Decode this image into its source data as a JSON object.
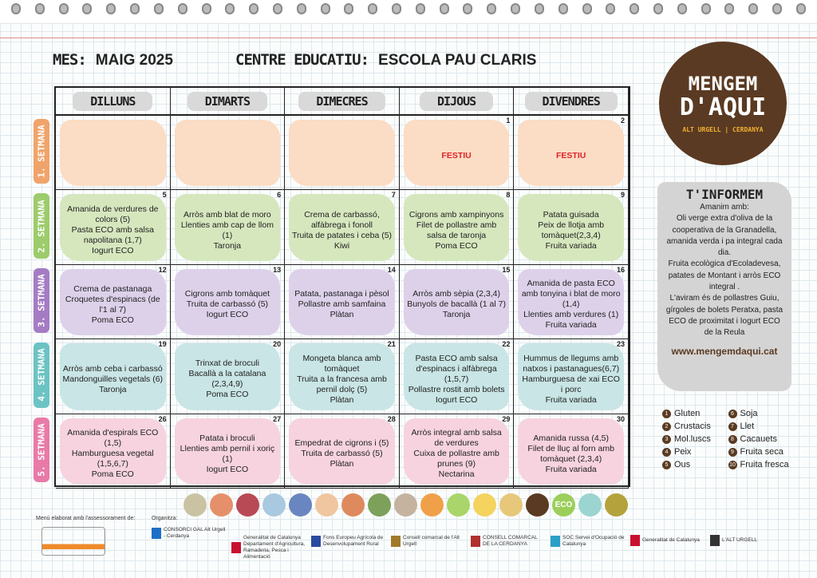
{
  "header": {
    "month_label": "MES:",
    "month": "MAIG 2025",
    "school_label": "CENTRE EDUCATIU:",
    "school": "ESCOLA PAU CLARIS"
  },
  "days": [
    "DILLUNS",
    "DIMARTS",
    "DIMECRES",
    "DIJOUS",
    "DIVENDRES"
  ],
  "weeks": [
    {
      "label": "1. SETMANA",
      "color": "#f0a46b",
      "bg": "#fbdcc4",
      "cells": [
        {
          "num": "",
          "lines": []
        },
        {
          "num": "",
          "lines": []
        },
        {
          "num": "",
          "lines": []
        },
        {
          "num": "1",
          "festiu": "FESTIU",
          "lines": []
        },
        {
          "num": "2",
          "festiu": "FESTIU",
          "lines": []
        }
      ]
    },
    {
      "label": "2. SETMANA",
      "color": "#9ccc6b",
      "bg": "#d6e7be",
      "cells": [
        {
          "num": "5",
          "lines": [
            "Amanida de verdures de colors (5)",
            "Pasta ECO amb salsa napolitana (1,7)",
            "Iogurt ECO"
          ]
        },
        {
          "num": "6",
          "lines": [
            "Arròs amb blat de moro",
            "Llenties amb cap de llom (1)",
            "Taronja"
          ]
        },
        {
          "num": "7",
          "lines": [
            "Crema de carbassó, alfàbrega i fonoll",
            "Truita de patates i ceba (5)",
            "Kiwi"
          ]
        },
        {
          "num": "8",
          "lines": [
            "Cigrons amb xampinyons",
            "Filet de pollastre amb salsa de taronja",
            "Poma ECO"
          ]
        },
        {
          "num": "9",
          "lines": [
            "Patata guisada",
            "Peix de llotja amb tomàquet(2,3,4)",
            "Fruita variada"
          ]
        }
      ]
    },
    {
      "label": "3. SETMANA",
      "color": "#a57cc4",
      "bg": "#ddd1ea",
      "cells": [
        {
          "num": "12",
          "lines": [
            "Crema de pastanaga",
            "Croquetes d'espinacs (de l'1 al 7)",
            "Poma ECO"
          ]
        },
        {
          "num": "13",
          "lines": [
            "Cigrons amb tomàquet",
            "Truita de carbassó (5)",
            "Iogurt ECO"
          ]
        },
        {
          "num": "14",
          "lines": [
            "Patata, pastanaga i pèsol",
            "Pollastre amb samfaina",
            "Plàtan"
          ]
        },
        {
          "num": "15",
          "lines": [
            "Arròs amb sèpia (2,3,4)",
            "Bunyols de bacallà (1 al 7)",
            "Taronja"
          ]
        },
        {
          "num": "16",
          "lines": [
            "Amanida de pasta ECO amb tonyina i blat de moro (1,4)",
            "Llenties amb verdures (1) Fruita variada"
          ]
        }
      ]
    },
    {
      "label": "4. SETMANA",
      "color": "#6cc3c4",
      "bg": "#c9e5e5",
      "cells": [
        {
          "num": "19",
          "lines": [
            "Arròs amb ceba i carbassó",
            "Mandonguilles vegetals (6)",
            "Taronja"
          ]
        },
        {
          "num": "20",
          "lines": [
            "Trinxat de broculi",
            "Bacallà a la catalana (2,3,4,9)",
            "Poma ECO"
          ]
        },
        {
          "num": "21",
          "lines": [
            "Mongeta blanca amb tomàquet",
            "Truita a la francesa amb pernil dolç (5)",
            "Plàtan"
          ]
        },
        {
          "num": "22",
          "lines": [
            "Pasta ECO amb salsa d'espinacs i alfàbrega (1,5,7)",
            "Pollastre rostit amb bolets",
            "Iogurt ECO"
          ]
        },
        {
          "num": "23",
          "lines": [
            "Hummus de llegums amb natxos i pastanagues(6,7)",
            "Hamburguesa de xai ECO i porc",
            "Fruita variada"
          ]
        }
      ]
    },
    {
      "label": "5. SETMANA",
      "color": "#e87aa8",
      "bg": "#f6d3df",
      "cells": [
        {
          "num": "26",
          "lines": [
            "Amanida d'espirals ECO (1,5)",
            "Hamburguesa vegetal (1,5,6,7)",
            "Poma ECO"
          ]
        },
        {
          "num": "27",
          "lines": [
            "Patata i broculi",
            "Llenties amb pernil i xoriç (1)",
            "Iogurt ECO"
          ]
        },
        {
          "num": "28",
          "lines": [
            "Empedrat de cigrons i (5)",
            "Truita de carbassó (5)",
            "Plàtan"
          ]
        },
        {
          "num": "29",
          "lines": [
            "Arròs integral amb salsa de verdures",
            "Cuixa de pollastre amb prunes (9)",
            "Nectarina"
          ]
        },
        {
          "num": "30",
          "lines": [
            "Amanida russa (4,5)",
            "Filet de lluç al forn amb tomàquet (2,3,4)",
            "Fruita variada"
          ]
        }
      ]
    }
  ],
  "logo": {
    "line1": "MENGEM",
    "line2": "D'AQUI",
    "tag": "ALT URGELL | CERDANYA"
  },
  "info": {
    "title": "T'INFORMEM",
    "text": [
      "Amanim amb:",
      "Oli verge extra d'oliva de la cooperativa de la Granadella, amanida verda i pa integral cada dia.",
      "Fruita ecològica d'Ecoladevesa, patates de Montant i arròs ECO integral .",
      "L'aviram és de pollastres Guiu, gírgoles de bolets Peratxa, pasta ECO de proximitat i Iogurt ECO de la Reula"
    ],
    "web": "www.mengemdaqui.cat"
  },
  "legend": [
    {
      "n": "1",
      "t": "Gluten"
    },
    {
      "n": "6",
      "t": "Soja"
    },
    {
      "n": "2",
      "t": "Crustacis"
    },
    {
      "n": "7",
      "t": "Llet"
    },
    {
      "n": "3",
      "t": "Mol.luscs"
    },
    {
      "n": "8",
      "t": "Cacauets"
    },
    {
      "n": "4",
      "t": "Peix"
    },
    {
      "n": "9",
      "t": "Fruita seca"
    },
    {
      "n": "5",
      "t": "Ous"
    },
    {
      "n": "10",
      "t": "Fruita fresca"
    }
  ],
  "food_icons": [
    {
      "name": "grain",
      "color": "#c9c3a4"
    },
    {
      "name": "chicken-leg",
      "color": "#e5906a"
    },
    {
      "name": "meat",
      "color": "#b84a55"
    },
    {
      "name": "fish",
      "color": "#a9c9e0"
    },
    {
      "name": "sardines",
      "color": "#6a86c0"
    },
    {
      "name": "pasta",
      "color": "#efc6a0"
    },
    {
      "name": "wheat",
      "color": "#de8a5e"
    },
    {
      "name": "vegetable",
      "color": "#7da05a"
    },
    {
      "name": "legumes",
      "color": "#c5b3a0"
    },
    {
      "name": "llama",
      "color": "#f0a048"
    },
    {
      "name": "apple",
      "color": "#a9d56a"
    },
    {
      "name": "banana",
      "color": "#f4d35e"
    },
    {
      "name": "bread",
      "color": "#e7c77a"
    },
    {
      "name": "leaf",
      "color": "#5a3a22"
    },
    {
      "name": "eco",
      "color": "#9bcf5a",
      "text": "ECO"
    },
    {
      "name": "milk",
      "color": "#9bd4d0"
    },
    {
      "name": "oil",
      "color": "#b4a23c"
    }
  ],
  "footer": {
    "advice": "Menú elaborat amb l'assessorament de:",
    "organizer": "Organitza:",
    "sponsors": [
      "CONSORCI GAL Alt Urgell - Cerdanya",
      "Generalitat de Catalunya Departament d'Agricultura, Ramaderia, Pesca i Alimentació",
      "Fons Europeu Agrícola de Desenvolupament Rural",
      "Consell comarcal de l'Alt Urgell",
      "CONSELL COMARCAL DE LA CERDANYA",
      "SOC Servei d'Ocupació de Catalunya",
      "Generalitat de Catalunya",
      "L'ALT URGELL"
    ]
  }
}
